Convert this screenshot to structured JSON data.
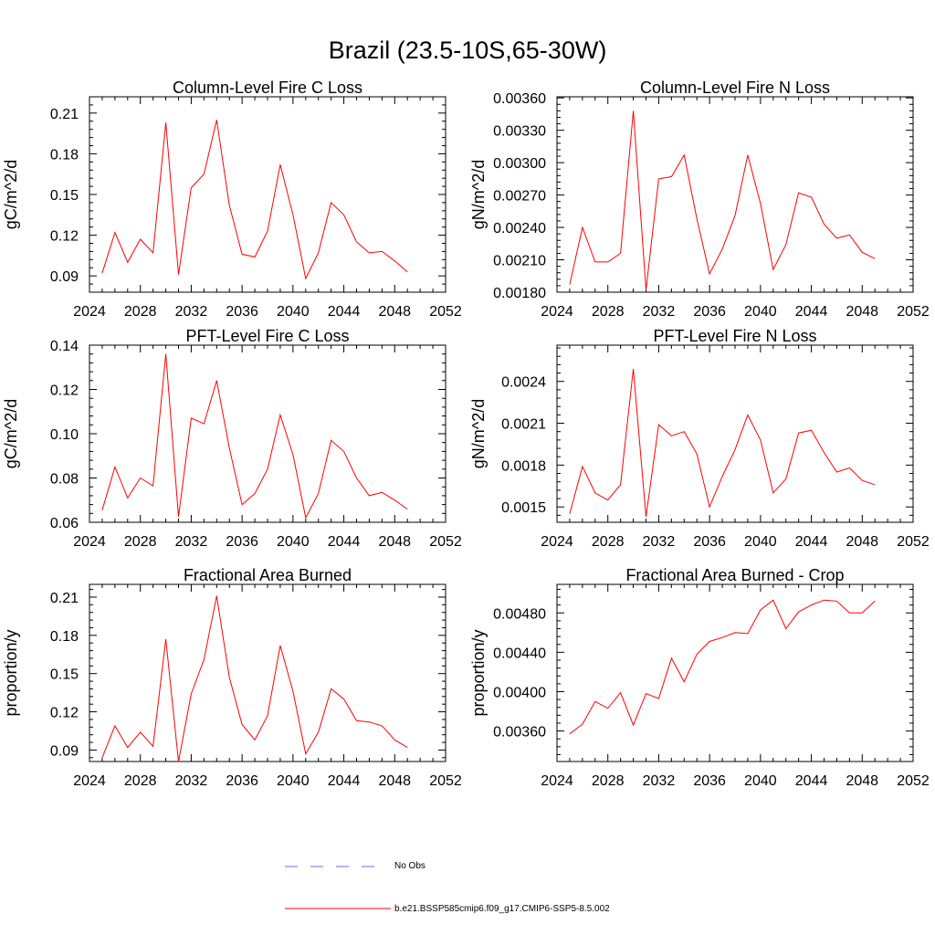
{
  "figure": {
    "title": "Brazil (23.5-10S,65-30W)"
  },
  "legend": {
    "items": [
      {
        "label": "No Obs",
        "color": "#6e6ed0",
        "dashed": true
      },
      {
        "label": "b.e21.BSSP585cmip6.f09_g17.CMIP6-SSP5-8.5.002",
        "color": "#ff0000",
        "dashed": false
      }
    ]
  },
  "chart_data": [
    {
      "type": "line",
      "title": "Column-Level Fire C Loss",
      "ylabel": "gC/m^2/d",
      "xlim": [
        2024,
        2052
      ],
      "ylim": [
        0.078,
        0.222
      ],
      "xticks": [
        "2024",
        "2028",
        "2032",
        "2036",
        "2040",
        "2044",
        "2048",
        "2052"
      ],
      "yticks": [
        0.09,
        0.12,
        0.15,
        0.18,
        0.21
      ],
      "ytick_labels": [
        "0.09",
        "0.12",
        "0.15",
        "0.18",
        "0.21"
      ],
      "series": [
        {
          "name": "b.e21.BSSP585cmip6.f09_g17.CMIP6-SSP5-8.5.002",
          "color": "#ff0000",
          "x": [
            2025,
            2026,
            2027,
            2028,
            2029,
            2030,
            2031,
            2032,
            2033,
            2034,
            2035,
            2036,
            2037,
            2038,
            2039,
            2040,
            2041,
            2042,
            2043,
            2044,
            2045,
            2046,
            2047,
            2048,
            2049
          ],
          "y": [
            0.092,
            0.122,
            0.1,
            0.117,
            0.107,
            0.203,
            0.091,
            0.155,
            0.165,
            0.205,
            0.142,
            0.106,
            0.104,
            0.123,
            0.172,
            0.135,
            0.088,
            0.107,
            0.144,
            0.135,
            0.115,
            0.107,
            0.108,
            0.101,
            0.093
          ]
        }
      ]
    },
    {
      "type": "line",
      "title": "Column-Level Fire N Loss",
      "ylabel": "gN/m^2/d",
      "xlim": [
        2024,
        2052
      ],
      "ylim": [
        0.0018,
        0.00361
      ],
      "xticks": [
        "2024",
        "2028",
        "2032",
        "2036",
        "2040",
        "2044",
        "2048",
        "2052"
      ],
      "yticks": [
        0.0018,
        0.0021,
        0.0024,
        0.0027,
        0.003,
        0.0033,
        0.0036
      ],
      "ytick_labels": [
        "0.00180",
        "0.00210",
        "0.00240",
        "0.00270",
        "0.00300",
        "0.00330",
        "0.00360"
      ],
      "series": [
        {
          "name": "b.e21.BSSP585cmip6.f09_g17.CMIP6-SSP5-8.5.002",
          "color": "#ff0000",
          "x": [
            2025,
            2026,
            2027,
            2028,
            2029,
            2030,
            2031,
            2032,
            2033,
            2034,
            2035,
            2036,
            2037,
            2038,
            2039,
            2040,
            2041,
            2042,
            2043,
            2044,
            2045,
            2046,
            2047,
            2048,
            2049
          ],
          "y": [
            0.00187,
            0.0024,
            0.00208,
            0.00208,
            0.00216,
            0.00348,
            0.00182,
            0.00285,
            0.00287,
            0.00307,
            0.00248,
            0.00197,
            0.0022,
            0.00251,
            0.00307,
            0.00262,
            0.00201,
            0.00224,
            0.00272,
            0.00268,
            0.00243,
            0.0023,
            0.00233,
            0.00217,
            0.00211
          ]
        }
      ]
    },
    {
      "type": "line",
      "title": "PFT-Level Fire C Loss",
      "ylabel": "gC/m^2/d",
      "xlim": [
        2024,
        2052
      ],
      "ylim": [
        0.06,
        0.14
      ],
      "xticks": [
        "2024",
        "2028",
        "2032",
        "2036",
        "2040",
        "2044",
        "2048",
        "2052"
      ],
      "yticks": [
        0.06,
        0.08,
        0.1,
        0.12,
        0.14
      ],
      "ytick_labels": [
        "0.06",
        "0.08",
        "0.10",
        "0.12",
        "0.14"
      ],
      "series": [
        {
          "name": "b.e21.BSSP585cmip6.f09_g17.CMIP6-SSP5-8.5.002",
          "color": "#ff0000",
          "x": [
            2025,
            2026,
            2027,
            2028,
            2029,
            2030,
            2031,
            2032,
            2033,
            2034,
            2035,
            2036,
            2037,
            2038,
            2039,
            2040,
            2041,
            2042,
            2043,
            2044,
            2045,
            2046,
            2047,
            2048,
            2049
          ],
          "y": [
            0.0655,
            0.085,
            0.071,
            0.08,
            0.0765,
            0.136,
            0.0625,
            0.107,
            0.1045,
            0.124,
            0.0935,
            0.068,
            0.073,
            0.084,
            0.1085,
            0.0905,
            0.062,
            0.073,
            0.097,
            0.092,
            0.08,
            0.072,
            0.0735,
            0.07,
            0.066
          ]
        }
      ]
    },
    {
      "type": "line",
      "title": "PFT-Level Fire N Loss",
      "ylabel": "gN/m^2/d",
      "xlim": [
        2024,
        2052
      ],
      "ylim": [
        0.00139,
        0.00266
      ],
      "xticks": [
        "2024",
        "2028",
        "2032",
        "2036",
        "2040",
        "2044",
        "2048",
        "2052"
      ],
      "yticks": [
        0.0015,
        0.0018,
        0.0021,
        0.0024
      ],
      "ytick_labels": [
        "0.0015",
        "0.0018",
        "0.0021",
        "0.0024"
      ],
      "series": [
        {
          "name": "b.e21.BSSP585cmip6.f09_g17.CMIP6-SSP5-8.5.002",
          "color": "#ff0000",
          "x": [
            2025,
            2026,
            2027,
            2028,
            2029,
            2030,
            2031,
            2032,
            2033,
            2034,
            2035,
            2036,
            2037,
            2038,
            2039,
            2040,
            2041,
            2042,
            2043,
            2044,
            2045,
            2046,
            2047,
            2048,
            2049
          ],
          "y": [
            0.00145,
            0.00179,
            0.0016,
            0.00155,
            0.00166,
            0.00249,
            0.00143,
            0.00209,
            0.00201,
            0.00204,
            0.00188,
            0.0015,
            0.00172,
            0.00191,
            0.00216,
            0.00198,
            0.0016,
            0.0017,
            0.00203,
            0.00205,
            0.00189,
            0.00175,
            0.00178,
            0.00169,
            0.00166
          ]
        }
      ]
    },
    {
      "type": "line",
      "title": "Fractional Area Burned",
      "ylabel": "proportion/y",
      "xlim": [
        2024,
        2052
      ],
      "ylim": [
        0.081,
        0.22
      ],
      "xticks": [
        "2024",
        "2028",
        "2032",
        "2036",
        "2040",
        "2044",
        "2048",
        "2052"
      ],
      "yticks": [
        0.09,
        0.12,
        0.15,
        0.18,
        0.21
      ],
      "ytick_labels": [
        "0.09",
        "0.12",
        "0.15",
        "0.18",
        "0.21"
      ],
      "series": [
        {
          "name": "b.e21.BSSP585cmip6.f09_g17.CMIP6-SSP5-8.5.002",
          "color": "#ff0000",
          "x": [
            2025,
            2026,
            2027,
            2028,
            2029,
            2030,
            2031,
            2032,
            2033,
            2034,
            2035,
            2036,
            2037,
            2038,
            2039,
            2040,
            2041,
            2042,
            2043,
            2044,
            2045,
            2046,
            2047,
            2048,
            2049
          ],
          "y": [
            0.084,
            0.109,
            0.092,
            0.104,
            0.093,
            0.177,
            0.081,
            0.134,
            0.161,
            0.211,
            0.147,
            0.11,
            0.098,
            0.117,
            0.172,
            0.136,
            0.087,
            0.104,
            0.138,
            0.13,
            0.113,
            0.112,
            0.109,
            0.098,
            0.092
          ]
        }
      ]
    },
    {
      "type": "line",
      "title": "Fractional Area Burned - Crop",
      "ylabel": "proportion/y",
      "xlim": [
        2024,
        2052
      ],
      "ylim": [
        0.00329,
        0.00509
      ],
      "xticks": [
        "2024",
        "2028",
        "2032",
        "2036",
        "2040",
        "2044",
        "2048",
        "2052"
      ],
      "yticks": [
        0.0036,
        0.004,
        0.0044,
        0.0048
      ],
      "ytick_labels": [
        "0.00360",
        "0.00400",
        "0.00440",
        "0.00480"
      ],
      "series": [
        {
          "name": "b.e21.BSSP585cmip6.f09_g17.CMIP6-SSP5-8.5.002",
          "color": "#ff0000",
          "x": [
            2025,
            2026,
            2027,
            2028,
            2029,
            2030,
            2031,
            2032,
            2033,
            2034,
            2035,
            2036,
            2037,
            2038,
            2039,
            2040,
            2041,
            2042,
            2043,
            2044,
            2045,
            2046,
            2047,
            2048,
            2049
          ],
          "y": [
            0.00357,
            0.00367,
            0.0039,
            0.00383,
            0.00399,
            0.00366,
            0.00398,
            0.00393,
            0.00434,
            0.0041,
            0.00438,
            0.00451,
            0.00455,
            0.0046,
            0.00459,
            0.00483,
            0.00493,
            0.00464,
            0.00481,
            0.00488,
            0.00493,
            0.00492,
            0.0048,
            0.0048,
            0.00492
          ]
        }
      ]
    }
  ]
}
